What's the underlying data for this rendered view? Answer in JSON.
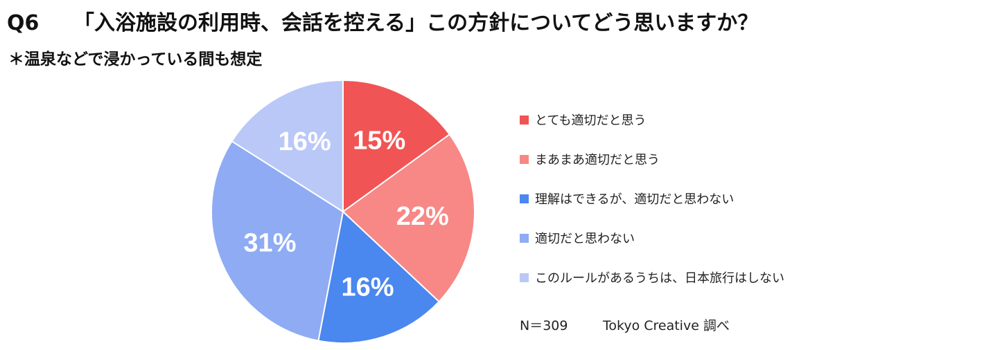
{
  "header": {
    "question_no": "Q6",
    "question": "「入浴施設の利用時、会話を控える」この方針についてどう思いますか？",
    "note": "＊温泉などで浸かっている間も想定"
  },
  "chart_data": {
    "type": "pie",
    "title": "",
    "start": "12 o'clock, clockwise",
    "slices": [
      {
        "label": "とても適切だと思う",
        "value": 15,
        "display": "15%",
        "color": "#f15454"
      },
      {
        "label": "まあまあ適切だと思う",
        "value": 22,
        "display": "22%",
        "color": "#f78886"
      },
      {
        "label": "理解はできるが、適切だと思わない",
        "value": 16,
        "display": "16%",
        "color": "#4a87ee"
      },
      {
        "label": "適切だと思わない",
        "value": 31,
        "display": "31%",
        "color": "#8eabf4"
      },
      {
        "label": "このルールがあるうちは、日本旅行はしない",
        "value": 16,
        "display": "16%",
        "color": "#bac8f8"
      }
    ],
    "legend_position": "right"
  },
  "footer": {
    "sample": "N＝309",
    "source": "Tokyo Creative 調べ"
  }
}
